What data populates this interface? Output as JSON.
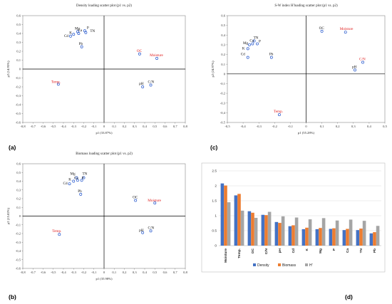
{
  "chart_data": [
    {
      "type": "scatter",
      "panel_label": "(a)",
      "title": "Density loading scatter plot (p1 vs. p2)",
      "xlabel": "p1 (33.87%)",
      "ylabel": "p2 (14.95%)",
      "xlim": [
        -0.8,
        0.8
      ],
      "ylim": [
        -0.6,
        0.6
      ],
      "xticks": [
        "-0,8",
        "-0,7",
        "-0,6",
        "-0,5",
        "-0,4",
        "-0,3",
        "-0,2",
        "-0,1",
        "0",
        "0,1",
        "0,2",
        "0,3",
        "0,4",
        "0,5",
        "0,6",
        "0,7",
        "0,8"
      ],
      "yticks": [
        "-0,6",
        "-0,5",
        "-0,4",
        "-0,3",
        "-0,2",
        "-0,1",
        "0",
        "0,1",
        "0,2",
        "0,3",
        "0,4",
        "0,5",
        "0,6"
      ],
      "points": [
        {
          "label": "Mg",
          "x": -0.26,
          "y": 0.42,
          "color": "black"
        },
        {
          "label": "Cd",
          "x": -0.33,
          "y": 0.37,
          "color": "black"
        },
        {
          "label": "K",
          "x": -0.3,
          "y": 0.39,
          "color": "black"
        },
        {
          "label": "Ca",
          "x": -0.25,
          "y": 0.4,
          "color": "black"
        },
        {
          "label": "P",
          "x": -0.19,
          "y": 0.43,
          "color": "black"
        },
        {
          "label": "TN",
          "x": -0.18,
          "y": 0.41,
          "color": "black"
        },
        {
          "label": "Pb",
          "x": -0.22,
          "y": 0.25,
          "color": "black"
        },
        {
          "label": "OC",
          "x": 0.35,
          "y": 0.17,
          "color": "red"
        },
        {
          "label": "Moisture",
          "x": 0.52,
          "y": 0.12,
          "color": "red"
        },
        {
          "label": "Temp.",
          "x": -0.45,
          "y": -0.17,
          "color": "red"
        },
        {
          "label": "pH",
          "x": 0.38,
          "y": -0.2,
          "color": "black"
        },
        {
          "label": "C/N",
          "x": 0.46,
          "y": -0.18,
          "color": "black"
        }
      ]
    },
    {
      "type": "scatter",
      "panel_label": "(c)",
      "title": "S-W index H'loading scatter plot (p1 vs. p2)",
      "xlabel": "p1 (55.28%)",
      "ylabel": "p2 (24.97%)",
      "xlim": [
        -0.5,
        0.5
      ],
      "ylim": [
        -0.5,
        0.6
      ],
      "xticks": [
        "-0,5",
        "-0,4",
        "-0,3",
        "-0,2",
        "-0,1",
        "0",
        "0,1",
        "0,2",
        "0,3",
        "0,4",
        "0,5"
      ],
      "yticks": [
        "-0,5",
        "-0,4",
        "-0,3",
        "-0,2",
        "-0,1",
        "0",
        "0,1",
        "0,2",
        "0,3",
        "0,4",
        "0,5",
        "0,6"
      ],
      "points": [
        {
          "label": "TN",
          "x": -0.33,
          "y": 0.34,
          "color": "black"
        },
        {
          "label": "Mg",
          "x": -0.36,
          "y": 0.3,
          "color": "black"
        },
        {
          "label": "Ca",
          "x": -0.34,
          "y": 0.31,
          "color": "black"
        },
        {
          "label": "P",
          "x": -0.31,
          "y": 0.31,
          "color": "black"
        },
        {
          "label": "K",
          "x": -0.37,
          "y": 0.26,
          "color": "black"
        },
        {
          "label": "Cd",
          "x": -0.37,
          "y": 0.17,
          "color": "black"
        },
        {
          "label": "Pb",
          "x": -0.22,
          "y": 0.17,
          "color": "black"
        },
        {
          "label": "OC",
          "x": 0.1,
          "y": 0.44,
          "color": "black"
        },
        {
          "label": "Moisture",
          "x": 0.25,
          "y": 0.43,
          "color": "red"
        },
        {
          "label": "C/N",
          "x": 0.36,
          "y": 0.12,
          "color": "red"
        },
        {
          "label": "pH",
          "x": 0.31,
          "y": 0.04,
          "color": "black"
        },
        {
          "label": "Temp.",
          "x": -0.17,
          "y": -0.42,
          "color": "red"
        }
      ]
    },
    {
      "type": "scatter",
      "panel_label": "(b)",
      "title": "Biomass loading scatter plot (p1 vs. p2)",
      "xlabel": "p1 (35.98%)",
      "ylabel": "p2 (15.82%)",
      "xlim": [
        -0.8,
        0.8
      ],
      "ylim": [
        -0.6,
        0.6
      ],
      "xticks": [
        "-0,8",
        "-0,7",
        "-0,6",
        "-0,5",
        "-0,4",
        "-0,3",
        "-0,2",
        "-0,1",
        "0",
        "0,1",
        "0,2",
        "0,3",
        "0,4",
        "0,5",
        "0,6",
        "0,7",
        "0,8"
      ],
      "yticks": [
        "-0,6",
        "-0,5",
        "-0,4",
        "-0,3",
        "-0,2",
        "-0,1",
        "0",
        "0,1",
        "0,2",
        "0,3",
        "0,4",
        "0,5",
        "0,6"
      ],
      "points": [
        {
          "label": "Mg",
          "x": -0.27,
          "y": 0.44,
          "color": "black"
        },
        {
          "label": "TN",
          "x": -0.2,
          "y": 0.44,
          "color": "black"
        },
        {
          "label": "Ca",
          "x": -0.26,
          "y": 0.41,
          "color": "black"
        },
        {
          "label": "P",
          "x": -0.22,
          "y": 0.41,
          "color": "black"
        },
        {
          "label": "K",
          "x": -0.3,
          "y": 0.4,
          "color": "black"
        },
        {
          "label": "Cd",
          "x": -0.34,
          "y": 0.37,
          "color": "black"
        },
        {
          "label": "Pb",
          "x": -0.23,
          "y": 0.25,
          "color": "black"
        },
        {
          "label": "OC",
          "x": 0.31,
          "y": 0.18,
          "color": "black"
        },
        {
          "label": "Moisture",
          "x": 0.5,
          "y": 0.15,
          "color": "red"
        },
        {
          "label": "Temp.",
          "x": -0.44,
          "y": -0.21,
          "color": "red"
        },
        {
          "label": "pH",
          "x": 0.38,
          "y": -0.19,
          "color": "black"
        },
        {
          "label": "C/N",
          "x": 0.46,
          "y": -0.17,
          "color": "black"
        }
      ]
    },
    {
      "type": "bar",
      "panel_label": "(d)",
      "ylim": [
        0,
        2.5
      ],
      "yticks": [
        "0",
        "0.5",
        "1",
        "1.5",
        "2",
        "2.5"
      ],
      "categories": [
        "Moisture",
        "Temp.",
        "OC",
        "C/N",
        "pH",
        "Cd",
        "K",
        "Mg",
        "P",
        "Ca",
        "TN",
        "Pb"
      ],
      "series": [
        {
          "name": "Density",
          "color": "#4472C4",
          "values": [
            2.08,
            1.68,
            1.15,
            1.03,
            0.79,
            0.65,
            0.55,
            0.55,
            0.56,
            0.52,
            0.52,
            0.41
          ]
        },
        {
          "name": "Biomass",
          "color": "#ED7D31",
          "values": [
            2.01,
            1.73,
            1.1,
            1.02,
            0.76,
            0.68,
            0.6,
            0.59,
            0.58,
            0.56,
            0.57,
            0.45
          ]
        },
        {
          "name": "H'",
          "color": "#A5A5A5",
          "values": [
            1.45,
            1.17,
            0.93,
            1.13,
            0.98,
            0.94,
            0.88,
            0.92,
            0.84,
            0.87,
            0.83,
            0.66
          ]
        }
      ]
    }
  ]
}
